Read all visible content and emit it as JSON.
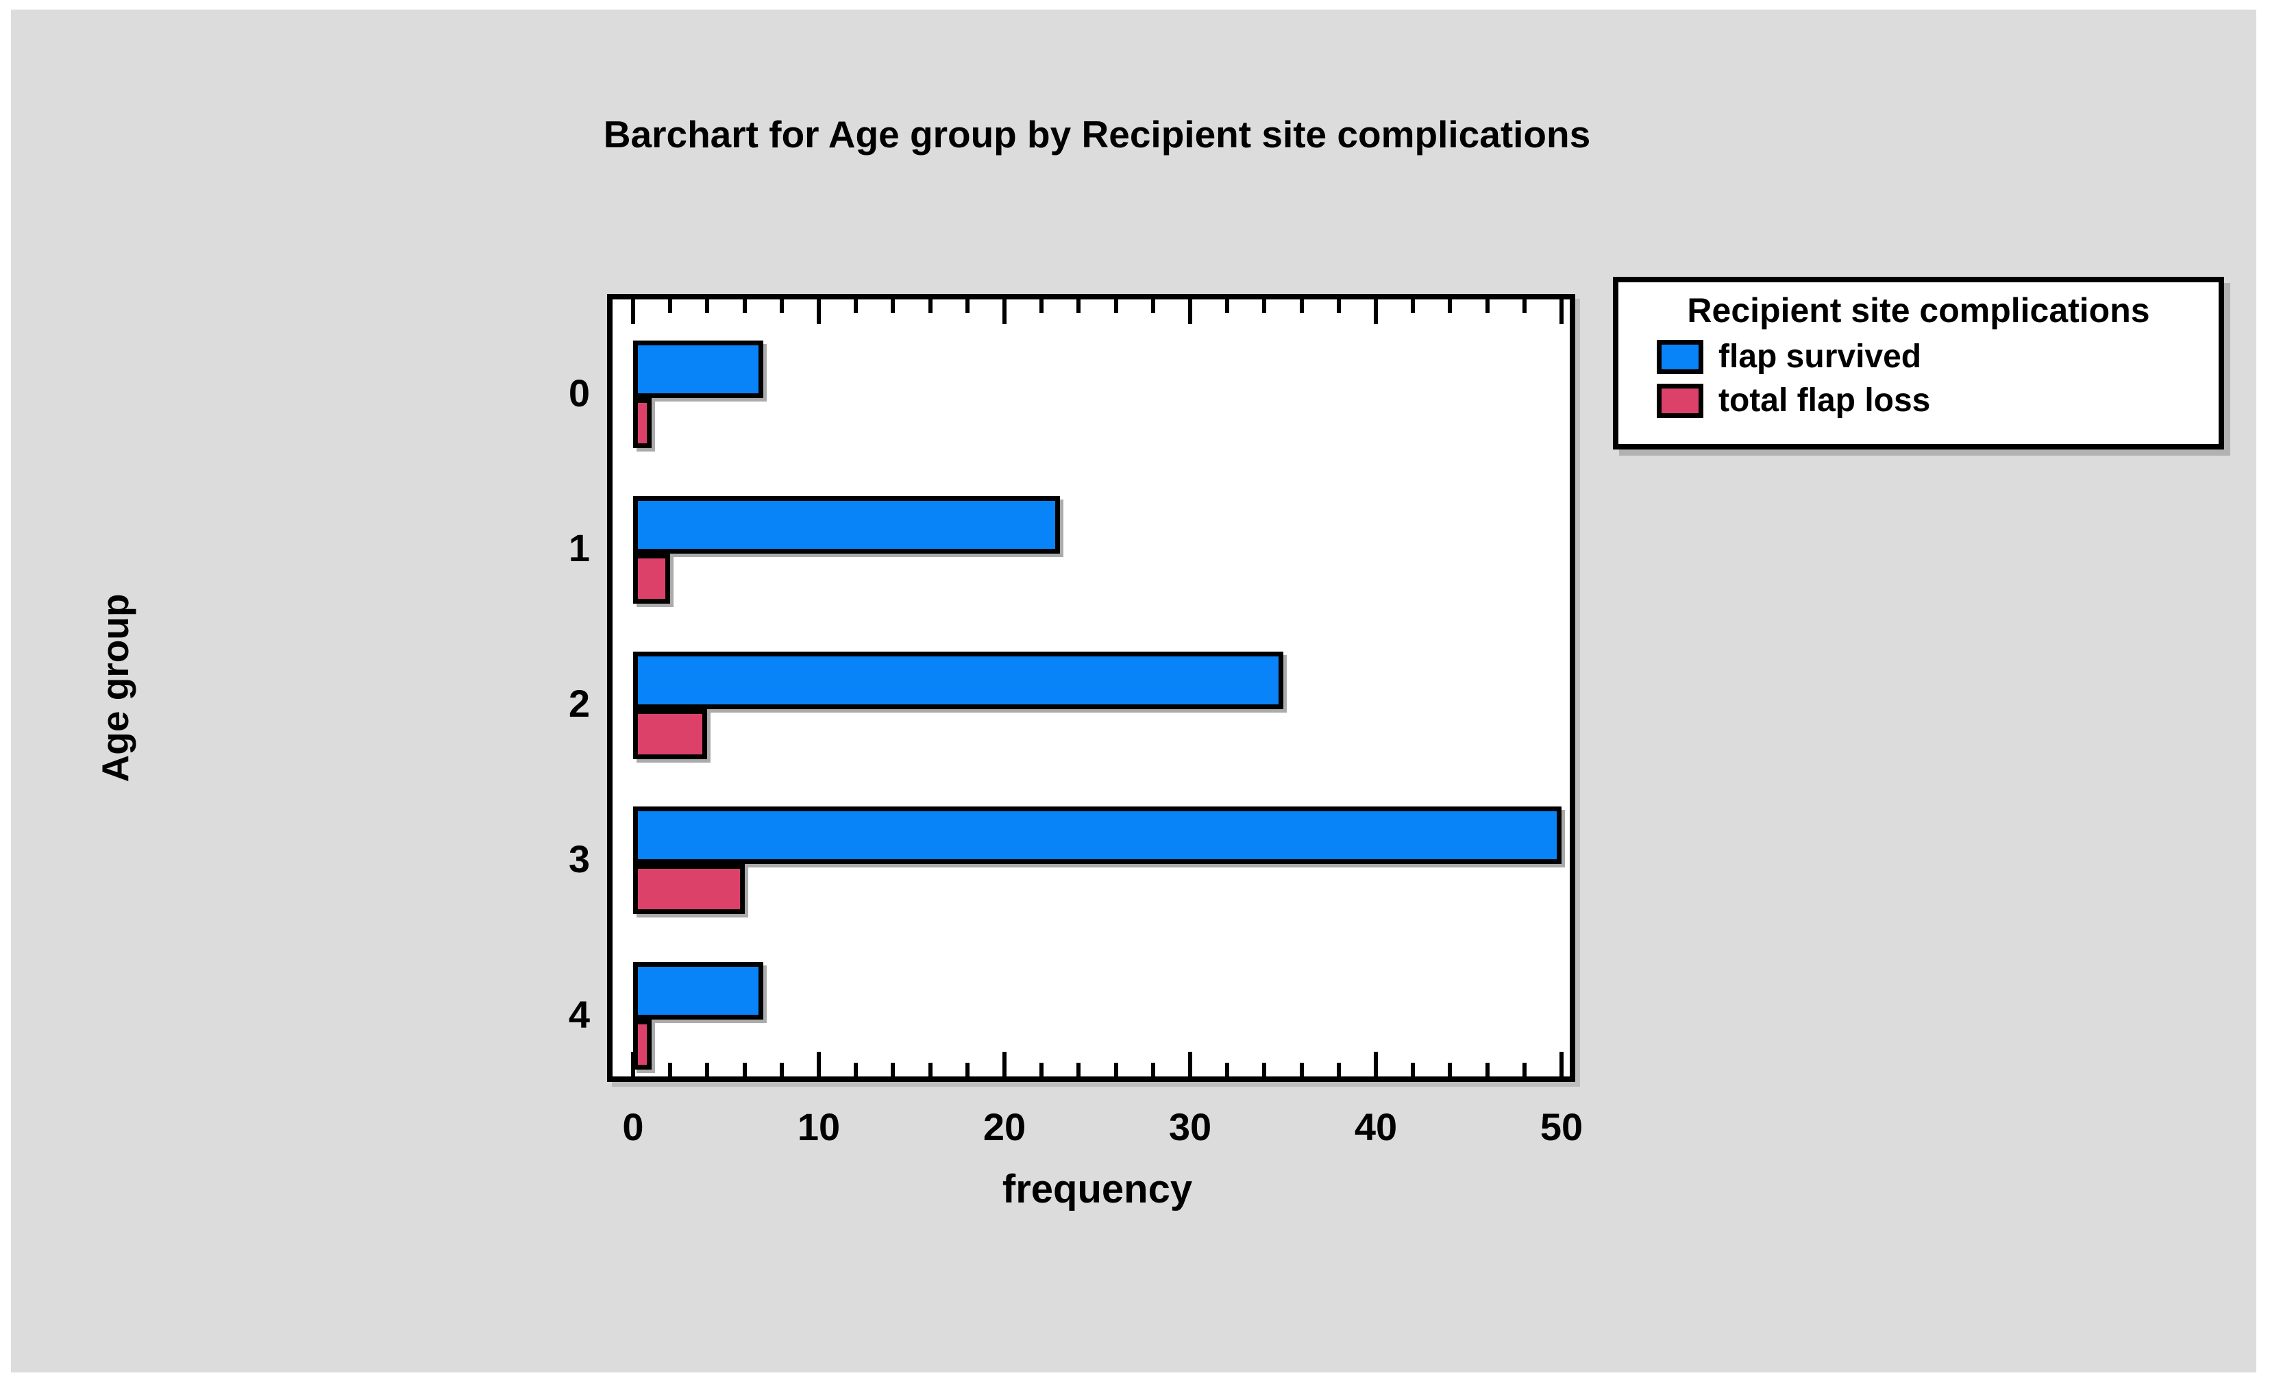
{
  "figure": {
    "background_color": "#dcdcdc",
    "plot_background_color": "#ffffff"
  },
  "chart_data": {
    "type": "bar",
    "orientation": "horizontal",
    "title": "Barchart for Age group by Recipient site complications",
    "xlabel": "frequency",
    "ylabel": "Age group",
    "categories": [
      "0",
      "1",
      "2",
      "3",
      "4"
    ],
    "series": [
      {
        "name": "flap survived",
        "color": "#0884f8",
        "values": [
          7,
          23,
          35,
          50,
          7
        ]
      },
      {
        "name": "total flap loss",
        "color": "#dc4269",
        "values": [
          1,
          2,
          4,
          6,
          1
        ]
      }
    ],
    "xlim": [
      0,
      50
    ],
    "x_major_ticks": [
      "0",
      "10",
      "20",
      "30",
      "40",
      "50"
    ],
    "x_major_tick_values": [
      0,
      10,
      20,
      30,
      40,
      50
    ],
    "x_minor_tick_step": 2,
    "grid": "off",
    "legend": {
      "title": "Recipient site complications",
      "position": "top-right"
    }
  }
}
